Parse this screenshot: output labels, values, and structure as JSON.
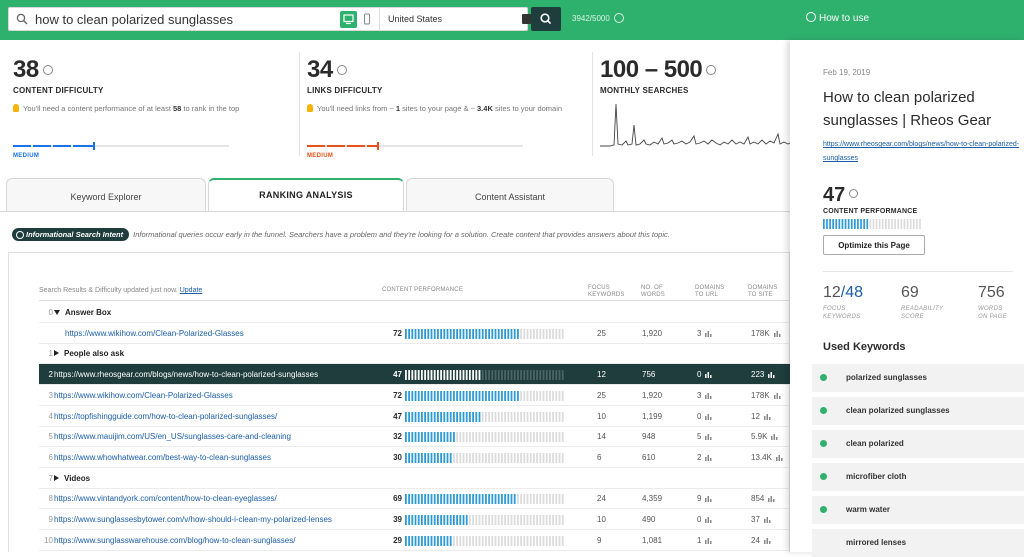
{
  "search": {
    "query": "how to clean polarized sunglasses",
    "location": "United States",
    "credits": "3942/5000"
  },
  "header": {
    "how_to_use": "How to use"
  },
  "metrics": {
    "content_difficulty": {
      "value": "38",
      "label": "CONTENT DIFFICULTY",
      "desc_pre": "You'll need a content performance of at least ",
      "desc_bold": "58",
      "desc_post": " to rank in the top",
      "level": "MEDIUM",
      "level_color": "#1a73e8"
    },
    "links_difficulty": {
      "value": "34",
      "label": "LINKS DIFFICULTY",
      "desc_pre": "You'll need links from ~ ",
      "desc_bold1": "1",
      "desc_mid": " sites to your page & ~ ",
      "desc_bold2": "3.4K",
      "desc_post": " sites to your domain",
      "level": "MEDIUM",
      "level_color": "#e8501a"
    },
    "monthly_searches": {
      "value": "100 – 500",
      "label": "MONTHLY SEARCHES"
    }
  },
  "tabs": [
    {
      "label": "Keyword Explorer",
      "active": false
    },
    {
      "label": "RANKING ANALYSIS",
      "active": true
    },
    {
      "label": "Content Assistant",
      "active": false
    }
  ],
  "intent": {
    "badge": "Informational Search Intent",
    "text": "Informational queries occur early in the funnel. Searchers have a problem and they're looking for a solution. Create content that provides answers about this topic."
  },
  "table": {
    "updated_text": "Search Results & Difficulty updated just now.",
    "update_link": "Update",
    "columns": {
      "content_performance": "CONTENT PERFORMANCE",
      "focus_keywords": [
        "FOCUS",
        "KEYWORDS"
      ],
      "num_words": [
        "NO. OF",
        "WORDS"
      ],
      "domains_url": [
        "DOMAINS",
        "TO URL"
      ],
      "domains_site": [
        "DOMAINS",
        "TO SITE"
      ]
    },
    "rows": [
      {
        "kind": "group",
        "index": "0",
        "label": "Answer Box",
        "open": true
      },
      {
        "kind": "url",
        "index": "",
        "url": "https://www.wikihow.com/Clean-Polarized-Glasses",
        "cp": 72,
        "fk": "25",
        "words": "1,920",
        "du": "3",
        "ds": "178K",
        "indent": true
      },
      {
        "kind": "group",
        "index": "1",
        "label": "People also ask",
        "open": false
      },
      {
        "kind": "url",
        "index": "2",
        "url": "https://www.rheosgear.com/blogs/news/how-to-clean-polarized-sunglasses",
        "cp": 47,
        "fk": "12",
        "words": "756",
        "du": "0",
        "ds": "223",
        "selected": true
      },
      {
        "kind": "url",
        "index": "3",
        "url": "https://www.wikihow.com/Clean-Polarized-Glasses",
        "cp": 72,
        "fk": "25",
        "words": "1,920",
        "du": "3",
        "ds": "178K"
      },
      {
        "kind": "url",
        "index": "4",
        "url": "https://topfishingguide.com/how-to-clean-polarized-sunglasses/",
        "cp": 47,
        "fk": "10",
        "words": "1,199",
        "du": "0",
        "ds": "12"
      },
      {
        "kind": "url",
        "index": "5",
        "url": "https://www.mauijim.com/US/en_US/sunglasses-care-and-cleaning",
        "cp": 32,
        "fk": "14",
        "words": "948",
        "du": "5",
        "ds": "5.9K"
      },
      {
        "kind": "url",
        "index": "6",
        "url": "https://www.whowhatwear.com/best-way-to-clean-sunglasses",
        "cp": 30,
        "fk": "6",
        "words": "610",
        "du": "2",
        "ds": "13.4K"
      },
      {
        "kind": "group",
        "index": "7",
        "label": "Videos",
        "open": false
      },
      {
        "kind": "url",
        "index": "8",
        "url": "https://www.vintandyork.com/content/how-to-clean-eyeglasses/",
        "cp": 69,
        "fk": "24",
        "words": "4,359",
        "du": "9",
        "ds": "854"
      },
      {
        "kind": "url",
        "index": "9",
        "url": "https://www.sunglassesbytower.com/v/how-should-i-clean-my-polarized-lenses",
        "cp": 39,
        "fk": "10",
        "words": "490",
        "du": "0",
        "ds": "37"
      },
      {
        "kind": "url",
        "index": "10",
        "url": "https://www.sunglasswarehouse.com/blog/how-to-clean-sunglasses/",
        "cp": 29,
        "fk": "9",
        "words": "1,081",
        "du": "1",
        "ds": "24"
      }
    ]
  },
  "right_panel": {
    "date": "Feb 19, 2019",
    "title": "How to clean polarized sunglasses | Rheos Gear",
    "url": "https://www.rheosgear.com/blogs/news/how-to-clean-polarized-sunglasses",
    "score": "47",
    "score_label": "CONTENT PERFORMANCE",
    "score_value": 47,
    "optimize_button": "Optimize this Page",
    "stats": {
      "focus_have": "12",
      "focus_total": "/48",
      "focus_label": [
        "FOCUS",
        "KEYWORDS"
      ],
      "readability": "69",
      "readability_label": [
        "READABILITY",
        "SCORE"
      ],
      "words": "756",
      "words_label": [
        "WORDS",
        "ON PAGE"
      ]
    },
    "used_keywords_title": "Used Keywords",
    "used_keywords": [
      {
        "label": "polarized sunglasses",
        "used": true
      },
      {
        "label": "clean polarized sunglasses",
        "used": true
      },
      {
        "label": "clean polarized",
        "used": true
      },
      {
        "label": "microfiber cloth",
        "used": true
      },
      {
        "label": "warm water",
        "used": true
      },
      {
        "label": "mirrored lenses",
        "used": false
      }
    ]
  },
  "colors": {
    "brand_green": "#2eb16d",
    "dark_teal": "#1f3d3d",
    "bar_blue": "#2f9bd6",
    "link_blue": "#1a5da8"
  }
}
